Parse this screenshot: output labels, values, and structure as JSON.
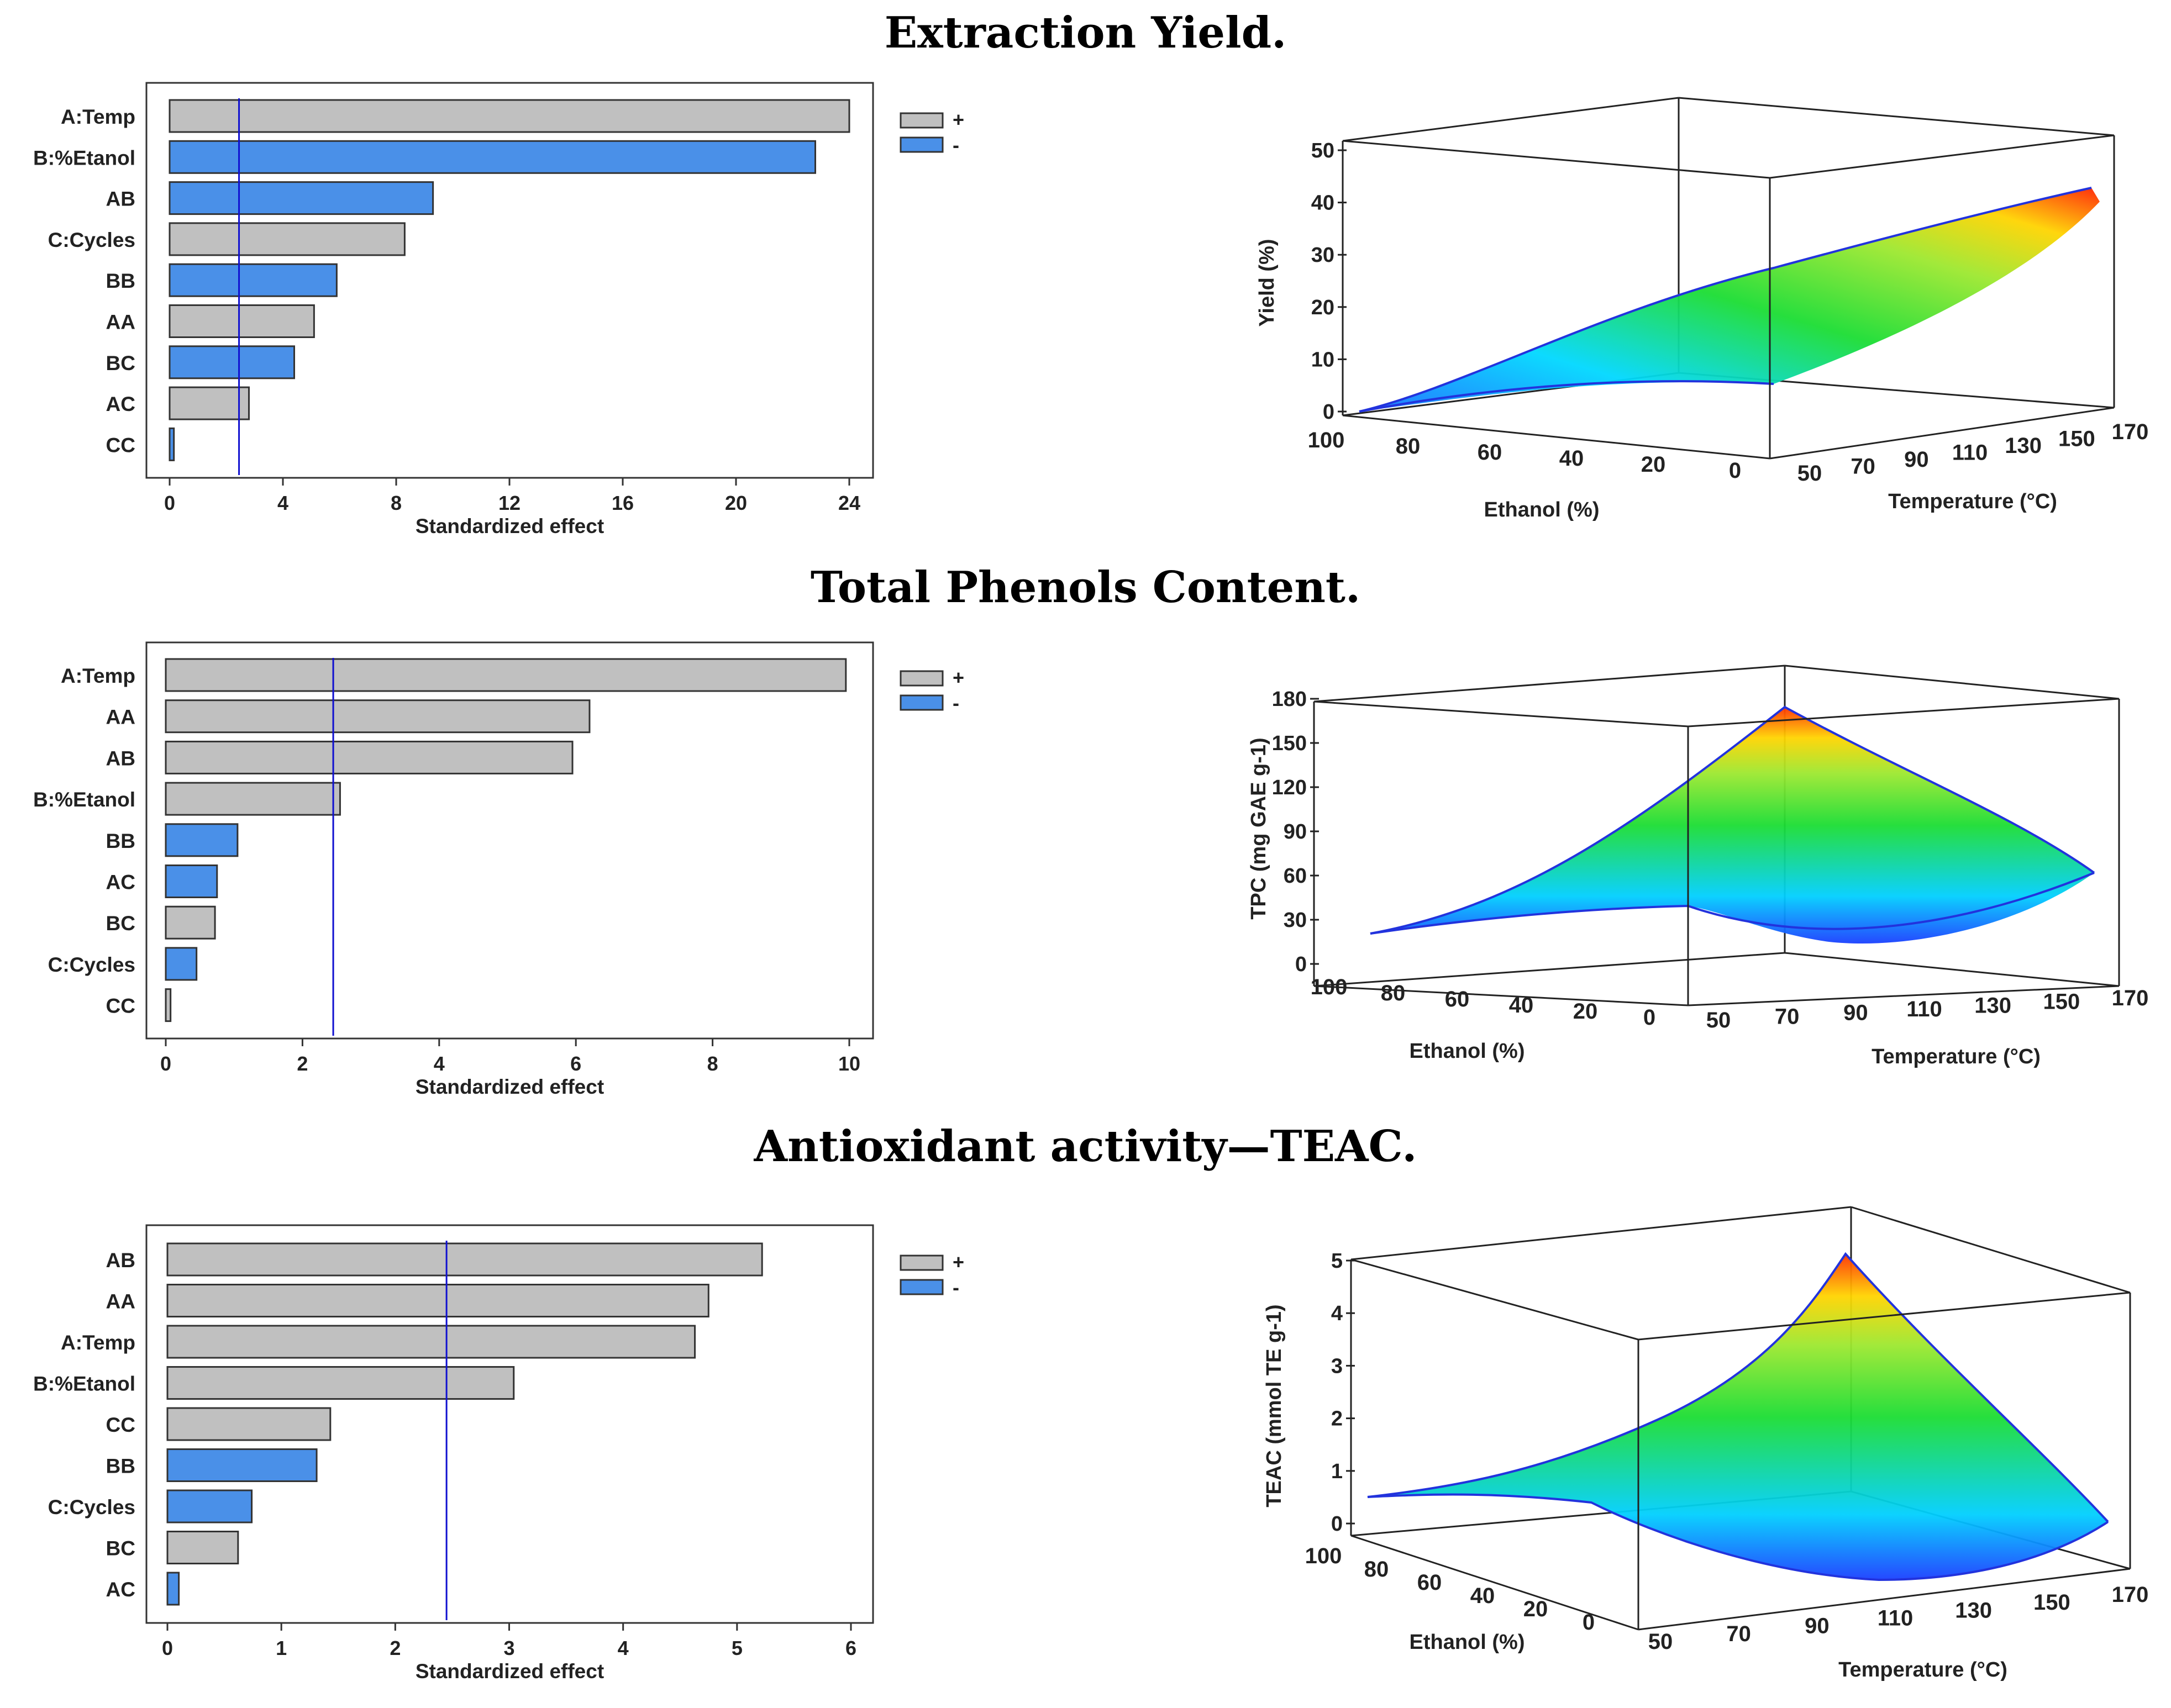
{
  "panels": [
    {
      "title": "Extraction Yield."
    },
    {
      "title": "Total Phenols Content."
    },
    {
      "title": "Antioxidant activity—TEAC."
    }
  ],
  "legend": {
    "plus": "+",
    "minus": "-",
    "plus_color": "#c0c0c0",
    "minus_color": "#4a90e8"
  },
  "chart_data": [
    {
      "type": "bar",
      "orientation": "horizontal",
      "title": "Extraction Yield.",
      "xlabel": "Standardized effect",
      "xlim": [
        0,
        24
      ],
      "xticks": [
        0,
        4,
        8,
        12,
        16,
        20,
        24
      ],
      "reference_line": 2.45,
      "categories": [
        "A:Temp",
        "B:%Etanol",
        "AB",
        "C:Cycles",
        "BB",
        "AA",
        "BC",
        "AC",
        "CC"
      ],
      "values": [
        24.0,
        22.8,
        9.3,
        8.3,
        5.9,
        5.1,
        4.4,
        2.8,
        0.15
      ],
      "signs": [
        "+",
        "-",
        "-",
        "+",
        "-",
        "+",
        "-",
        "+",
        "-"
      ]
    },
    {
      "type": "surface",
      "zlabel": "Yield (%)",
      "xlabel": "Ethanol (%)",
      "ylabel": "Temperature (°C)",
      "zticks": [
        0,
        10,
        20,
        30,
        40,
        50
      ],
      "xticks": [
        100,
        80,
        60,
        40,
        20,
        0
      ],
      "yticks": [
        50,
        70,
        90,
        110,
        130,
        150,
        170
      ]
    },
    {
      "type": "bar",
      "orientation": "horizontal",
      "title": "Total Phenols Content.",
      "xlabel": "Standardized effect",
      "xlim": [
        0,
        10
      ],
      "xticks": [
        0,
        2,
        4,
        6,
        8,
        10
      ],
      "reference_line": 2.45,
      "categories": [
        "A:Temp",
        "AA",
        "AB",
        "B:%Etanol",
        "BB",
        "AC",
        "BC",
        "C:Cycles",
        "CC"
      ],
      "values": [
        9.95,
        6.2,
        5.95,
        2.55,
        1.05,
        0.75,
        0.72,
        0.45,
        0.07
      ],
      "signs": [
        "+",
        "+",
        "+",
        "+",
        "-",
        "-",
        "+",
        "-",
        "+"
      ]
    },
    {
      "type": "surface",
      "zlabel": "TPC (mg GAE g-1)",
      "xlabel": "Ethanol (%)",
      "ylabel": "Temperature (°C)",
      "zticks": [
        0,
        30,
        60,
        90,
        120,
        150,
        180
      ],
      "xticks": [
        100,
        80,
        60,
        40,
        20,
        0
      ],
      "yticks": [
        50,
        70,
        90,
        110,
        130,
        150,
        170
      ]
    },
    {
      "type": "bar",
      "orientation": "horizontal",
      "title": "Antioxidant activity—TEAC.",
      "xlabel": "Standardized effect",
      "xlim": [
        0,
        6
      ],
      "xticks": [
        0,
        1,
        2,
        3,
        4,
        5,
        6
      ],
      "reference_line": 2.45,
      "categories": [
        "AB",
        "AA",
        "A:Temp",
        "B:%Etanol",
        "CC",
        "BB",
        "C:Cycles",
        "BC",
        "AC"
      ],
      "values": [
        5.22,
        4.75,
        4.63,
        3.04,
        1.43,
        1.31,
        0.74,
        0.62,
        0.1
      ],
      "signs": [
        "+",
        "+",
        "+",
        "+",
        "+",
        "-",
        "-",
        "+",
        "-"
      ]
    },
    {
      "type": "surface",
      "zlabel": "TEAC (mmol TE g-1)",
      "xlabel": "Ethanol (%)",
      "ylabel": "Temperature (°C)",
      "zticks": [
        0,
        1,
        2,
        3,
        4,
        5
      ],
      "xticks": [
        100,
        80,
        60,
        40,
        20,
        0
      ],
      "yticks": [
        50,
        70,
        90,
        110,
        130,
        150,
        170
      ]
    }
  ]
}
